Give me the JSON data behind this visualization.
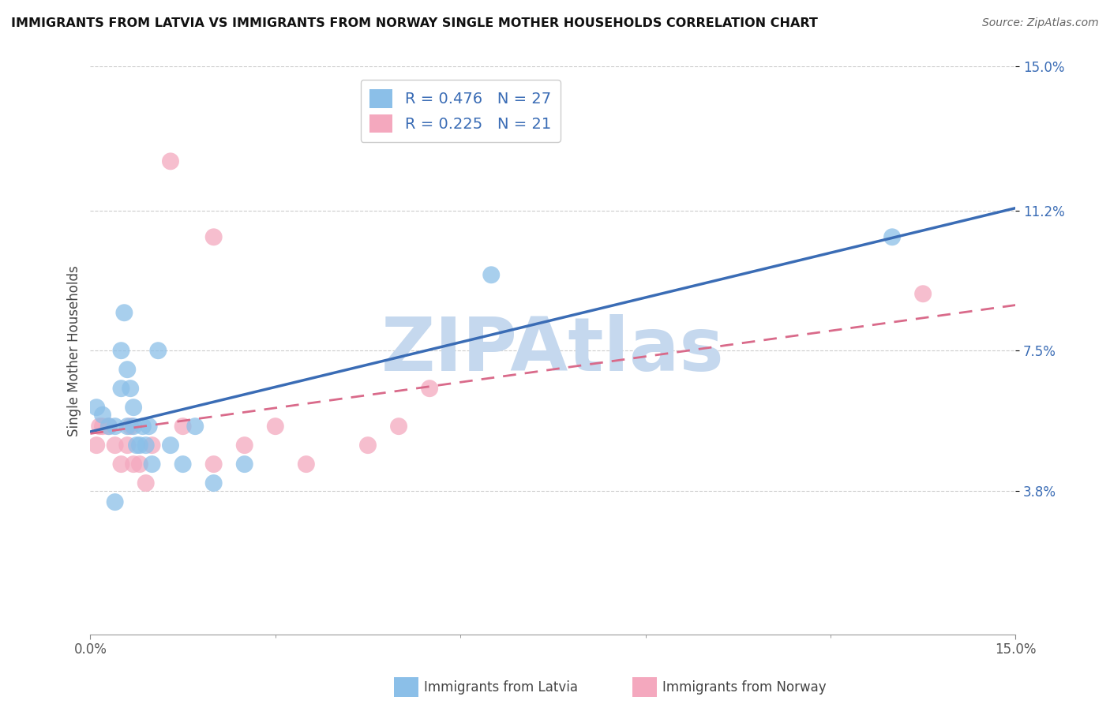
{
  "title": "IMMIGRANTS FROM LATVIA VS IMMIGRANTS FROM NORWAY SINGLE MOTHER HOUSEHOLDS CORRELATION CHART",
  "source": "Source: ZipAtlas.com",
  "ylabel": "Single Mother Households",
  "xlim": [
    0.0,
    15.0
  ],
  "ylim": [
    0.0,
    15.0
  ],
  "yticks": [
    3.8,
    7.5,
    11.2,
    15.0
  ],
  "xticks": [
    0.0,
    15.0
  ],
  "R_latvia": 0.476,
  "N_latvia": 27,
  "R_norway": 0.225,
  "N_norway": 21,
  "color_latvia": "#8bbfe8",
  "color_norway": "#f4a8be",
  "color_latvia_line": "#3a6cb5",
  "color_norway_line": "#d96a8a",
  "watermark": "ZIPAtlas",
  "watermark_color": "#c5d8ee",
  "background_color": "#ffffff",
  "grid_color": "#cccccc",
  "legend_label1": "R = 0.476   N = 27",
  "legend_label2": "R = 0.225   N = 21",
  "bottom_label1": "Immigrants from Latvia",
  "bottom_label2": "Immigrants from Norway",
  "latvia_x": [
    0.1,
    0.2,
    0.3,
    0.4,
    0.4,
    0.5,
    0.5,
    0.55,
    0.6,
    0.6,
    0.65,
    0.7,
    0.7,
    0.75,
    0.8,
    0.85,
    0.9,
    0.95,
    1.0,
    1.1,
    1.3,
    1.5,
    1.7,
    2.0,
    2.5,
    6.5,
    13.0
  ],
  "latvia_y": [
    6.0,
    5.8,
    5.5,
    3.5,
    5.5,
    6.5,
    7.5,
    8.5,
    5.5,
    7.0,
    6.5,
    5.5,
    6.0,
    5.0,
    5.0,
    5.5,
    5.0,
    5.5,
    4.5,
    7.5,
    5.0,
    4.5,
    5.5,
    4.0,
    4.5,
    9.5,
    10.5
  ],
  "norway_x": [
    0.1,
    0.15,
    0.2,
    0.3,
    0.4,
    0.5,
    0.6,
    0.65,
    0.7,
    0.8,
    0.9,
    1.0,
    1.5,
    2.0,
    2.5,
    3.0,
    3.5,
    4.5,
    5.0,
    5.5,
    13.5
  ],
  "norway_y": [
    5.0,
    5.5,
    5.5,
    5.5,
    5.0,
    4.5,
    5.0,
    5.5,
    4.5,
    4.5,
    4.0,
    5.0,
    5.5,
    4.5,
    5.0,
    5.5,
    4.5,
    5.0,
    5.5,
    6.5,
    9.0
  ],
  "norway_outlier1_x": 1.3,
  "norway_outlier1_y": 12.5,
  "norway_outlier2_x": 2.0,
  "norway_outlier2_y": 10.5
}
